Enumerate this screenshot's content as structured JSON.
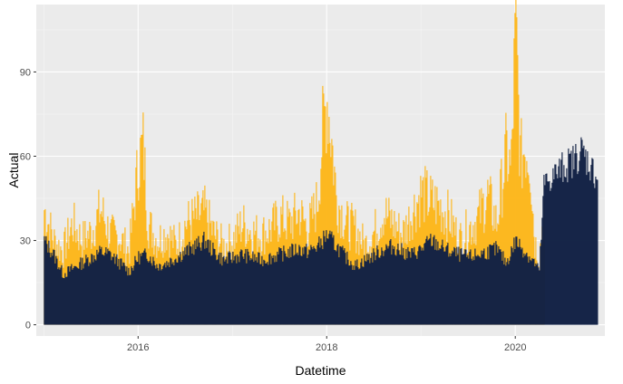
{
  "chart_data": {
    "type": "bar",
    "xlabel": "Datetime",
    "ylabel": "Actual",
    "x_ticks": [
      "2016",
      "2018",
      "2020"
    ],
    "y_ticks": [
      0,
      30,
      60,
      90
    ],
    "x_range": [
      2014.92,
      2020.95
    ],
    "ylim": [
      -4,
      114
    ],
    "grid": true,
    "legend": "none",
    "colors": {
      "panel": "#ebebeb",
      "grid_major": "#ffffff",
      "grid_minor": "#f5f5f5",
      "actual_bars": "#fdb71d",
      "fitted_bars": "#132245"
    },
    "series": [
      {
        "role": "actual (yellow bars)",
        "x": [
          2015.0,
          2015.1,
          2015.2,
          2015.3,
          2015.4,
          2015.5,
          2015.6,
          2015.7,
          2015.8,
          2015.9,
          2016.0,
          2016.05,
          2016.1,
          2016.2,
          2016.3,
          2016.4,
          2016.5,
          2016.6,
          2016.7,
          2016.8,
          2016.9,
          2017.0,
          2017.1,
          2017.2,
          2017.3,
          2017.4,
          2017.5,
          2017.6,
          2017.7,
          2017.8,
          2017.9,
          2017.95,
          2018.0,
          2018.05,
          2018.1,
          2018.2,
          2018.3,
          2018.4,
          2018.5,
          2018.6,
          2018.7,
          2018.8,
          2018.9,
          2019.0,
          2019.1,
          2019.2,
          2019.3,
          2019.4,
          2019.5,
          2019.6,
          2019.7,
          2019.8,
          2019.9,
          2019.95,
          2020.0,
          2020.05,
          2020.1,
          2020.15,
          2020.2,
          2020.25,
          2020.3
        ],
        "values": [
          41,
          30,
          26,
          36,
          30,
          33,
          41,
          32,
          31,
          26,
          58,
          64,
          36,
          30,
          33,
          28,
          36,
          38,
          40,
          32,
          28,
          30,
          36,
          33,
          32,
          34,
          38,
          36,
          40,
          34,
          44,
          68,
          81,
          65,
          45,
          36,
          34,
          28,
          33,
          40,
          36,
          32,
          40,
          47,
          44,
          42,
          38,
          30,
          34,
          38,
          46,
          36,
          62,
          54,
          108,
          58,
          64,
          60,
          30,
          24,
          42
        ]
      },
      {
        "role": "fitted (navy bars)",
        "x": [
          2015.0,
          2015.1,
          2015.2,
          2015.3,
          2015.4,
          2015.5,
          2015.6,
          2015.7,
          2015.8,
          2015.9,
          2016.0,
          2016.1,
          2016.2,
          2016.3,
          2016.4,
          2016.5,
          2016.6,
          2016.7,
          2016.8,
          2016.9,
          2017.0,
          2017.1,
          2017.2,
          2017.3,
          2017.4,
          2017.5,
          2017.6,
          2017.7,
          2017.8,
          2017.9,
          2018.0,
          2018.1,
          2018.2,
          2018.3,
          2018.4,
          2018.5,
          2018.6,
          2018.7,
          2018.8,
          2018.9,
          2019.0,
          2019.1,
          2019.2,
          2019.3,
          2019.4,
          2019.5,
          2019.6,
          2019.7,
          2019.8,
          2019.9,
          2020.0,
          2020.1,
          2020.2,
          2020.25,
          2020.3,
          2020.4,
          2020.5,
          2020.6,
          2020.7,
          2020.8,
          2020.87
        ],
        "values": [
          30,
          25,
          18,
          20,
          22,
          24,
          26,
          25,
          22,
          19,
          24,
          25,
          21,
          22,
          24,
          26,
          28,
          30,
          26,
          23,
          24,
          25,
          24,
          23,
          24,
          25,
          26,
          27,
          26,
          28,
          32,
          28,
          24,
          21,
          23,
          25,
          27,
          28,
          26,
          25,
          27,
          30,
          28,
          26,
          25,
          24,
          25,
          26,
          27,
          22,
          30,
          26,
          22,
          19,
          50,
          53,
          56,
          58,
          62,
          56,
          52
        ]
      }
    ]
  }
}
